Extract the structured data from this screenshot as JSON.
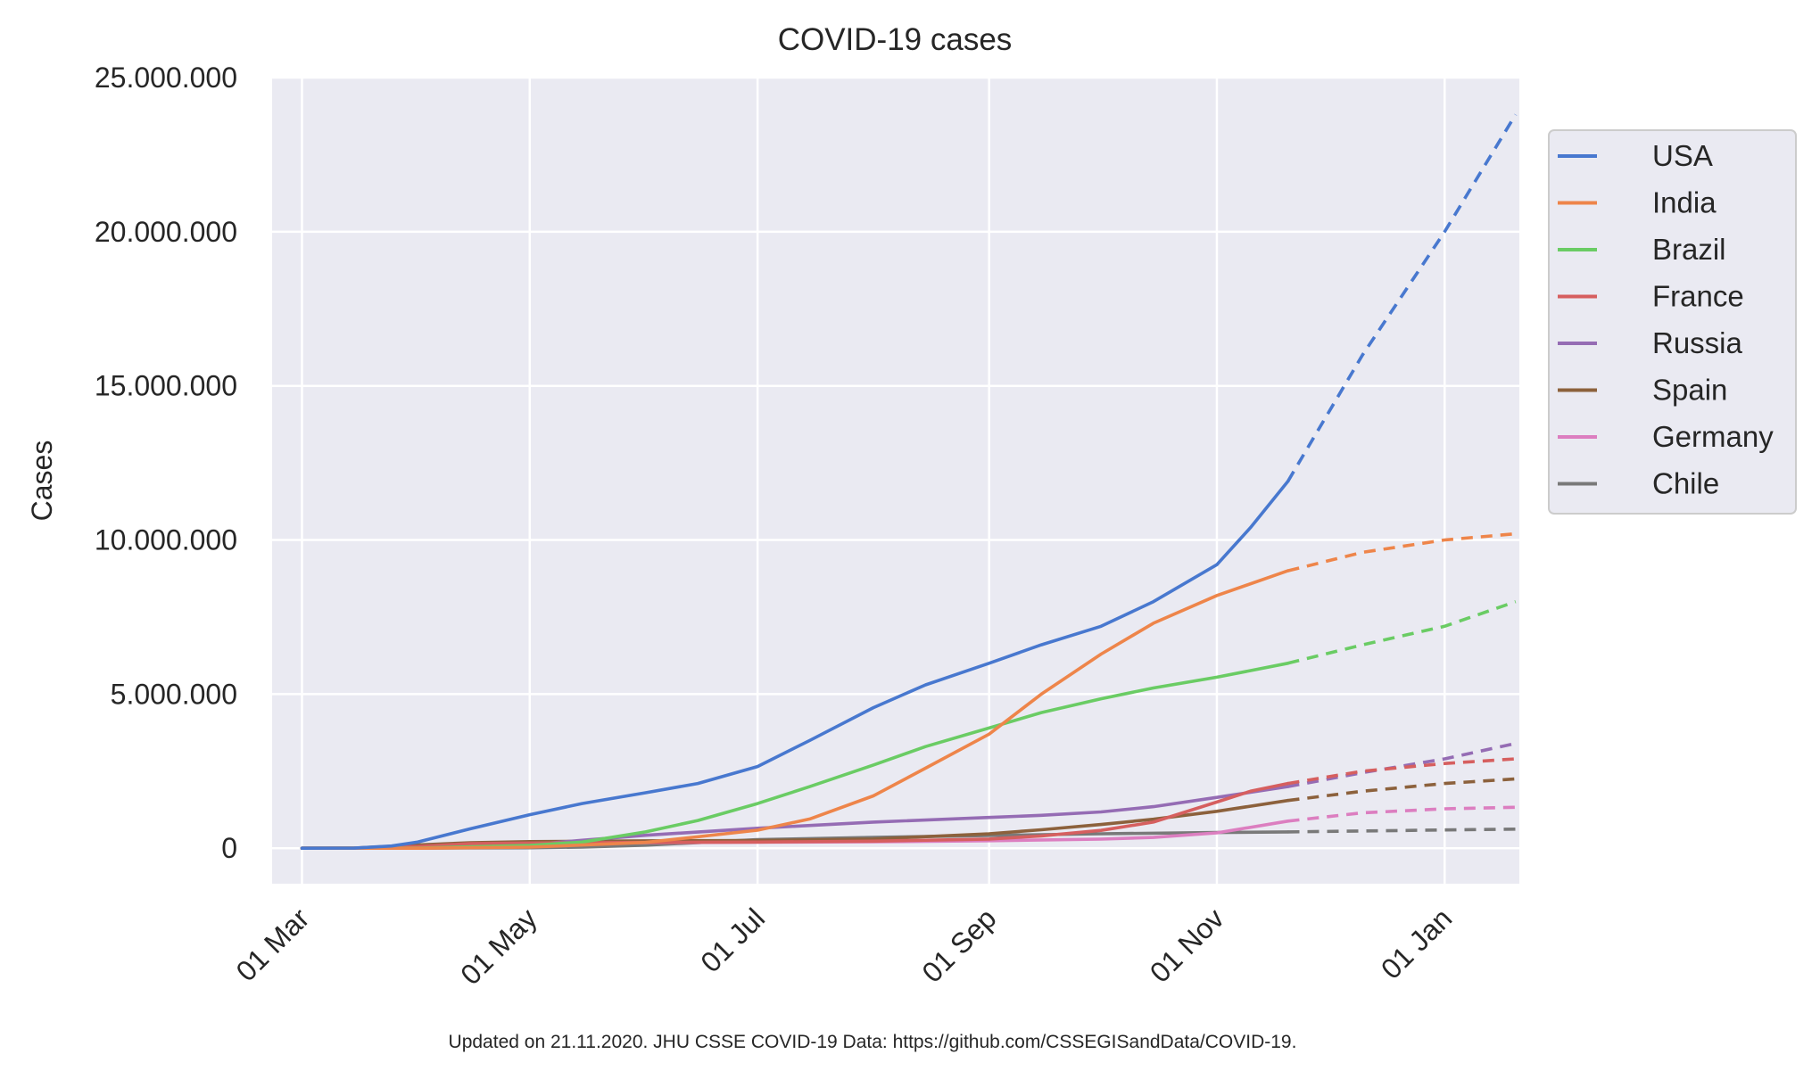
{
  "chart_data": {
    "type": "line",
    "title": "COVID-19 cases",
    "ylabel": "Cases",
    "xlabel": "",
    "footnote": "Updated on 21.11.2020. JHU CSSE COVID-19 Data: https://github.com/CSSEGISandData/COVID-19.",
    "x_range": [
      "2020-02-22",
      "2021-01-21"
    ],
    "x_ticks": [
      {
        "date": "2020-03-01",
        "label": "01 Mar"
      },
      {
        "date": "2020-05-01",
        "label": "01 May"
      },
      {
        "date": "2020-07-01",
        "label": "01 Jul"
      },
      {
        "date": "2020-09-01",
        "label": "01 Sep"
      },
      {
        "date": "2020-11-01",
        "label": "01 Nov"
      },
      {
        "date": "2021-01-01",
        "label": "01 Jan"
      }
    ],
    "ylim": [
      -1150000,
      25000000
    ],
    "y_ticks": [
      {
        "value": 0,
        "label": "0"
      },
      {
        "value": 5000000,
        "label": "5.000.000"
      },
      {
        "value": 10000000,
        "label": "10.000.000"
      },
      {
        "value": 15000000,
        "label": "15.000.000"
      },
      {
        "value": 20000000,
        "label": "20.000.000"
      },
      {
        "value": 25000000,
        "label": "25.000.000"
      }
    ],
    "grid": true,
    "legend_position": "outside-right-top",
    "forecast_style": "dashed",
    "series": [
      {
        "name": "USA",
        "color": "#4878cf",
        "data": [
          [
            "2020-03-01",
            0
          ],
          [
            "2020-03-15",
            3000
          ],
          [
            "2020-03-25",
            75000
          ],
          [
            "2020-04-01",
            200000
          ],
          [
            "2020-04-15",
            630000
          ],
          [
            "2020-05-01",
            1090000
          ],
          [
            "2020-05-15",
            1450000
          ],
          [
            "2020-06-01",
            1800000
          ],
          [
            "2020-06-15",
            2100000
          ],
          [
            "2020-07-01",
            2650000
          ],
          [
            "2020-07-15",
            3500000
          ],
          [
            "2020-08-01",
            4560000
          ],
          [
            "2020-08-15",
            5300000
          ],
          [
            "2020-09-01",
            6000000
          ],
          [
            "2020-09-15",
            6600000
          ],
          [
            "2020-10-01",
            7200000
          ],
          [
            "2020-10-15",
            8000000
          ],
          [
            "2020-11-01",
            9200000
          ],
          [
            "2020-11-10",
            10400000
          ],
          [
            "2020-11-20",
            11900000
          ]
        ],
        "forecast": [
          [
            "2020-11-20",
            11900000
          ],
          [
            "2020-12-10",
            16000000
          ],
          [
            "2021-01-01",
            20000000
          ],
          [
            "2021-01-20",
            23800000
          ]
        ]
      },
      {
        "name": "India",
        "color": "#ee854a",
        "data": [
          [
            "2020-03-01",
            0
          ],
          [
            "2020-04-01",
            1600
          ],
          [
            "2020-05-01",
            35000
          ],
          [
            "2020-06-01",
            190000
          ],
          [
            "2020-07-01",
            585000
          ],
          [
            "2020-07-15",
            950000
          ],
          [
            "2020-08-01",
            1700000
          ],
          [
            "2020-08-15",
            2600000
          ],
          [
            "2020-09-01",
            3700000
          ],
          [
            "2020-09-15",
            5000000
          ],
          [
            "2020-10-01",
            6300000
          ],
          [
            "2020-10-15",
            7300000
          ],
          [
            "2020-11-01",
            8200000
          ],
          [
            "2020-11-20",
            9000000
          ]
        ],
        "forecast": [
          [
            "2020-11-20",
            9000000
          ],
          [
            "2020-12-10",
            9600000
          ],
          [
            "2021-01-01",
            10000000
          ],
          [
            "2021-01-20",
            10200000
          ]
        ]
      },
      {
        "name": "Brazil",
        "color": "#6acc64",
        "data": [
          [
            "2020-03-01",
            0
          ],
          [
            "2020-04-01",
            6000
          ],
          [
            "2020-05-01",
            90000
          ],
          [
            "2020-05-15",
            200000
          ],
          [
            "2020-06-01",
            530000
          ],
          [
            "2020-06-15",
            900000
          ],
          [
            "2020-07-01",
            1450000
          ],
          [
            "2020-07-15",
            2000000
          ],
          [
            "2020-08-01",
            2700000
          ],
          [
            "2020-08-15",
            3300000
          ],
          [
            "2020-09-01",
            3900000
          ],
          [
            "2020-09-15",
            4400000
          ],
          [
            "2020-10-01",
            4850000
          ],
          [
            "2020-10-15",
            5200000
          ],
          [
            "2020-11-01",
            5550000
          ],
          [
            "2020-11-20",
            6000000
          ]
        ],
        "forecast": [
          [
            "2020-11-20",
            6000000
          ],
          [
            "2020-12-10",
            6600000
          ],
          [
            "2021-01-01",
            7200000
          ],
          [
            "2021-01-20",
            8000000
          ]
        ]
      },
      {
        "name": "France",
        "color": "#d65f5f",
        "data": [
          [
            "2020-03-01",
            100
          ],
          [
            "2020-03-15",
            5000
          ],
          [
            "2020-04-01",
            57000
          ],
          [
            "2020-04-15",
            150000
          ],
          [
            "2020-05-01",
            170000
          ],
          [
            "2020-06-01",
            190000
          ],
          [
            "2020-07-01",
            200000
          ],
          [
            "2020-08-01",
            230000
          ],
          [
            "2020-09-01",
            300000
          ],
          [
            "2020-09-15",
            400000
          ],
          [
            "2020-10-01",
            580000
          ],
          [
            "2020-10-15",
            850000
          ],
          [
            "2020-11-01",
            1500000
          ],
          [
            "2020-11-10",
            1850000
          ],
          [
            "2020-11-20",
            2100000
          ]
        ],
        "forecast": [
          [
            "2020-11-20",
            2100000
          ],
          [
            "2020-12-10",
            2500000
          ],
          [
            "2021-01-01",
            2750000
          ],
          [
            "2021-01-20",
            2900000
          ]
        ]
      },
      {
        "name": "Russia",
        "color": "#956cb4",
        "data": [
          [
            "2020-03-01",
            0
          ],
          [
            "2020-04-01",
            2800
          ],
          [
            "2020-04-15",
            25000
          ],
          [
            "2020-05-01",
            115000
          ],
          [
            "2020-05-15",
            260000
          ],
          [
            "2020-06-01",
            420000
          ],
          [
            "2020-07-01",
            650000
          ],
          [
            "2020-08-01",
            850000
          ],
          [
            "2020-09-01",
            1000000
          ],
          [
            "2020-09-15",
            1070000
          ],
          [
            "2020-10-01",
            1180000
          ],
          [
            "2020-10-15",
            1350000
          ],
          [
            "2020-11-01",
            1650000
          ],
          [
            "2020-11-20",
            2000000
          ]
        ],
        "forecast": [
          [
            "2020-11-20",
            2000000
          ],
          [
            "2020-12-10",
            2450000
          ],
          [
            "2021-01-01",
            2900000
          ],
          [
            "2021-01-20",
            3400000
          ]
        ]
      },
      {
        "name": "Spain",
        "color": "#8c613c",
        "data": [
          [
            "2020-03-01",
            80
          ],
          [
            "2020-03-15",
            8000
          ],
          [
            "2020-04-01",
            104000
          ],
          [
            "2020-04-15",
            180000
          ],
          [
            "2020-05-01",
            215000
          ],
          [
            "2020-06-01",
            240000
          ],
          [
            "2020-07-01",
            250000
          ],
          [
            "2020-08-01",
            300000
          ],
          [
            "2020-09-01",
            470000
          ],
          [
            "2020-09-15",
            600000
          ],
          [
            "2020-10-01",
            770000
          ],
          [
            "2020-10-15",
            940000
          ],
          [
            "2020-11-01",
            1200000
          ],
          [
            "2020-11-20",
            1550000
          ]
        ],
        "forecast": [
          [
            "2020-11-20",
            1550000
          ],
          [
            "2020-12-10",
            1850000
          ],
          [
            "2021-01-01",
            2100000
          ],
          [
            "2021-01-20",
            2250000
          ]
        ]
      },
      {
        "name": "Germany",
        "color": "#dc7ec0",
        "data": [
          [
            "2020-03-01",
            130
          ],
          [
            "2020-03-15",
            5800
          ],
          [
            "2020-04-01",
            77000
          ],
          [
            "2020-04-15",
            135000
          ],
          [
            "2020-05-01",
            163000
          ],
          [
            "2020-06-01",
            183000
          ],
          [
            "2020-07-01",
            195000
          ],
          [
            "2020-08-01",
            210000
          ],
          [
            "2020-09-01",
            245000
          ],
          [
            "2020-10-01",
            295000
          ],
          [
            "2020-10-15",
            350000
          ],
          [
            "2020-11-01",
            500000
          ],
          [
            "2020-11-20",
            880000
          ]
        ],
        "forecast": [
          [
            "2020-11-20",
            880000
          ],
          [
            "2020-12-10",
            1150000
          ],
          [
            "2021-01-01",
            1280000
          ],
          [
            "2021-01-20",
            1330000
          ]
        ]
      },
      {
        "name": "Chile",
        "color": "#797979",
        "data": [
          [
            "2020-03-01",
            0
          ],
          [
            "2020-04-01",
            3000
          ],
          [
            "2020-05-01",
            17000
          ],
          [
            "2020-05-15",
            40000
          ],
          [
            "2020-06-01",
            100000
          ],
          [
            "2020-07-01",
            280000
          ],
          [
            "2020-08-01",
            355000
          ],
          [
            "2020-09-01",
            415000
          ],
          [
            "2020-10-01",
            470000
          ],
          [
            "2020-11-01",
            510000
          ],
          [
            "2020-11-20",
            530000
          ]
        ],
        "forecast": [
          [
            "2020-11-20",
            530000
          ],
          [
            "2020-12-10",
            560000
          ],
          [
            "2021-01-01",
            595000
          ],
          [
            "2021-01-20",
            620000
          ]
        ]
      }
    ]
  }
}
